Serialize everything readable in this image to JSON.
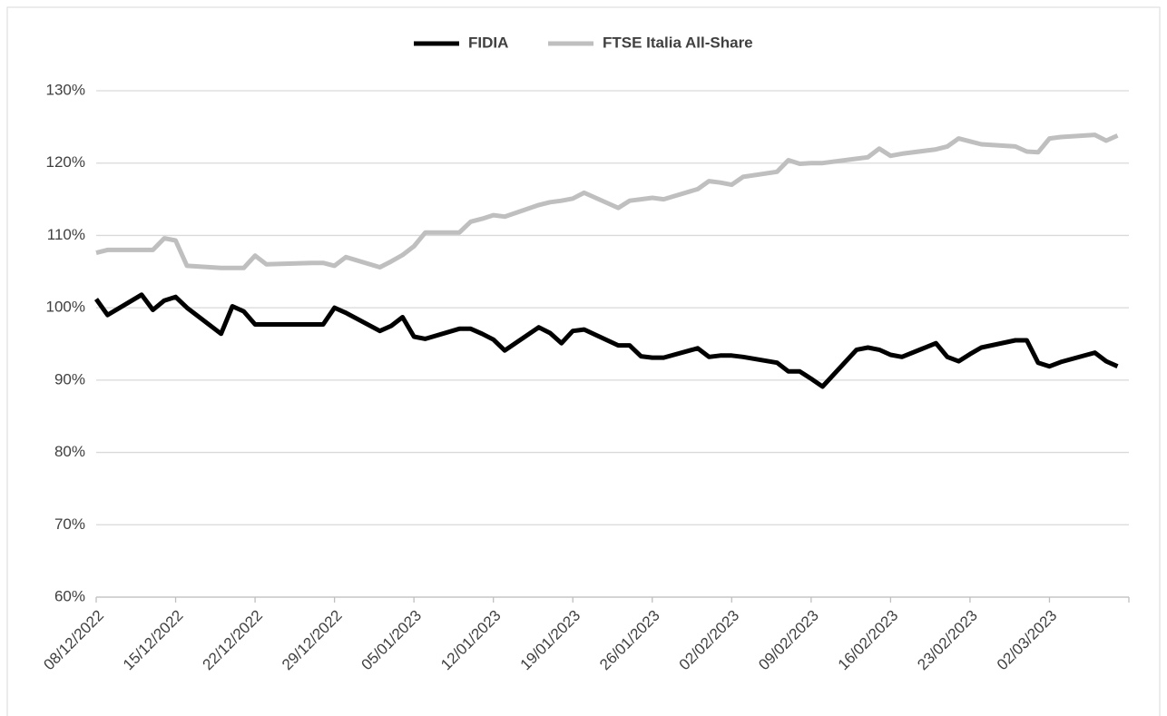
{
  "chart_data": {
    "type": "line",
    "x": [
      "08/12/2022",
      "09/12/2022",
      "12/12/2022",
      "13/12/2022",
      "14/12/2022",
      "15/12/2022",
      "16/12/2022",
      "19/12/2022",
      "20/12/2022",
      "21/12/2022",
      "22/12/2022",
      "23/12/2022",
      "27/12/2022",
      "28/12/2022",
      "29/12/2022",
      "30/12/2022",
      "02/01/2023",
      "03/01/2023",
      "04/01/2023",
      "05/01/2023",
      "06/01/2023",
      "09/01/2023",
      "10/01/2023",
      "11/01/2023",
      "12/01/2023",
      "13/01/2023",
      "16/01/2023",
      "17/01/2023",
      "18/01/2023",
      "19/01/2023",
      "20/01/2023",
      "23/01/2023",
      "24/01/2023",
      "25/01/2023",
      "26/01/2023",
      "27/01/2023",
      "30/01/2023",
      "31/01/2023",
      "01/02/2023",
      "02/02/2023",
      "03/02/2023",
      "06/02/2023",
      "07/02/2023",
      "08/02/2023",
      "09/02/2023",
      "10/02/2023",
      "13/02/2023",
      "14/02/2023",
      "15/02/2023",
      "16/02/2023",
      "17/02/2023",
      "20/02/2023",
      "21/02/2023",
      "22/02/2023",
      "23/02/2023",
      "24/02/2023",
      "27/02/2023",
      "28/02/2023",
      "01/03/2023",
      "02/03/2023",
      "03/03/2023",
      "06/03/2023",
      "07/03/2023",
      "08/03/2023"
    ],
    "series": [
      {
        "name": "FIDIA",
        "color": "#000000",
        "values": [
          101.2,
          99,
          101.8,
          99.7,
          101,
          101.5,
          100,
          96.4,
          100.2,
          99.5,
          97.7,
          97.7,
          97.7,
          97.7,
          100,
          99.3,
          96.8,
          97.5,
          98.7,
          96,
          95.7,
          97.1,
          97.1,
          96.4,
          95.6,
          94.1,
          97.3,
          96.5,
          95.1,
          96.8,
          97,
          94.8,
          94.8,
          93.3,
          93.1,
          93.1,
          94.4,
          93.2,
          93.4,
          93.4,
          93.2,
          92.4,
          91.2,
          91.2,
          90.2,
          89.1,
          94.2,
          94.5,
          94.2,
          93.5,
          93.2,
          95.1,
          93.2,
          92.6,
          93.6,
          94.5,
          95.5,
          95.5,
          92.4,
          91.9,
          92.5,
          93.8,
          92.6,
          91.9
        ]
      },
      {
        "name": "FTSE Italia All-Share",
        "color": "#bfbfbf",
        "values": [
          107.6,
          108,
          108,
          108,
          109.6,
          109.3,
          105.8,
          105.5,
          105.5,
          105.5,
          107.2,
          106,
          106.2,
          106.2,
          105.8,
          107,
          105.6,
          106.4,
          107.3,
          108.5,
          110.4,
          110.4,
          111.9,
          112.3,
          112.8,
          112.6,
          114.2,
          114.6,
          114.8,
          115.1,
          115.9,
          113.8,
          114.8,
          115,
          115.2,
          115,
          116.4,
          117.5,
          117.3,
          117,
          118.1,
          118.8,
          120.4,
          119.9,
          120,
          120,
          120.6,
          120.8,
          122,
          121,
          121.3,
          121.9,
          122.3,
          123.4,
          123,
          122.6,
          122.3,
          121.6,
          121.5,
          123.4,
          123.6,
          123.9,
          123.1,
          123.8
        ]
      }
    ],
    "xlim": [
      "08/12/2022",
      "09/03/2023"
    ],
    "xticks": [
      "08/12/2022",
      "15/12/2022",
      "22/12/2022",
      "29/12/2022",
      "05/01/2023",
      "12/01/2023",
      "19/01/2023",
      "26/01/2023",
      "02/02/2023",
      "09/02/2023",
      "16/02/2023",
      "23/02/2023",
      "02/03/2023"
    ],
    "ylim": [
      60,
      130
    ],
    "yticks": [
      {
        "value": 60,
        "label": "60%"
      },
      {
        "value": 70,
        "label": "70%"
      },
      {
        "value": 80,
        "label": "80%"
      },
      {
        "value": 90,
        "label": "90%"
      },
      {
        "value": 100,
        "label": "100%"
      },
      {
        "value": 110,
        "label": "110%"
      },
      {
        "value": 120,
        "label": "120%"
      },
      {
        "value": 130,
        "label": "130%"
      }
    ],
    "grid": true,
    "legend": "top"
  }
}
